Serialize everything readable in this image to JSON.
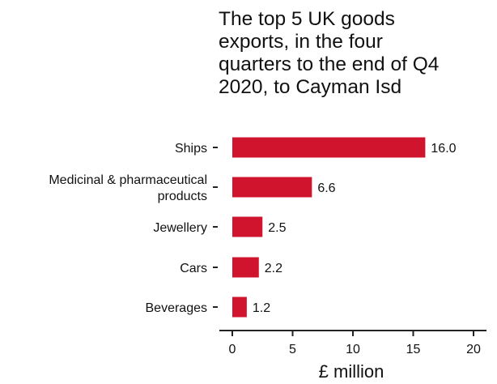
{
  "chart_data": {
    "type": "bar",
    "orientation": "horizontal",
    "title_lines": [
      "The top 5 UK goods",
      "exports, in the four",
      "quarters to the end of Q4",
      "2020, to Cayman Isd"
    ],
    "categories": [
      [
        "Ships"
      ],
      [
        "Medicinal & pharmaceutical",
        "products"
      ],
      [
        "Jewellery"
      ],
      [
        "Cars"
      ],
      [
        "Beverages"
      ]
    ],
    "values": [
      16.0,
      6.6,
      2.5,
      2.2,
      1.2
    ],
    "value_labels": [
      "16.0",
      "6.6",
      "2.5",
      "2.2",
      "1.2"
    ],
    "xlabel": "£ million",
    "xlim": [
      0,
      20
    ],
    "xticks": [
      "0",
      "5",
      "10",
      "15",
      "20"
    ],
    "bar_color": "#d0142e",
    "grid": false
  }
}
